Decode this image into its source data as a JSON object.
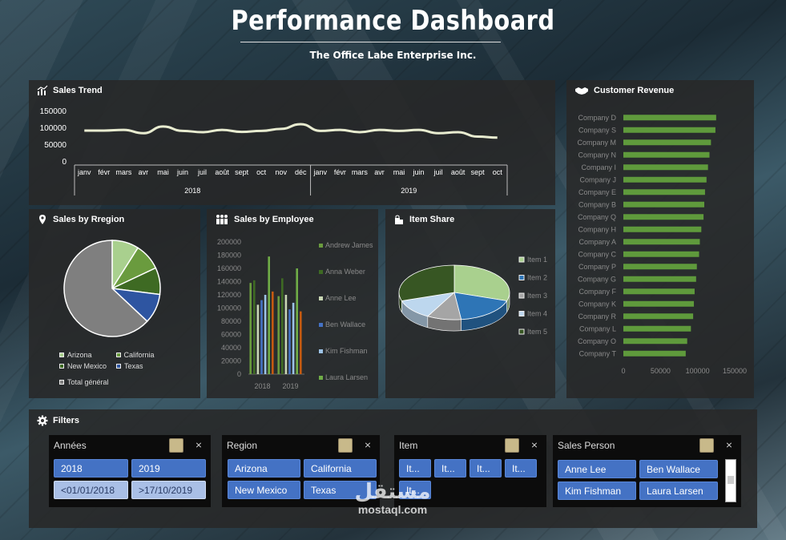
{
  "header": {
    "title": "Performance Dashboard",
    "subtitle": "The Office Labe Enterprise Inc."
  },
  "sales_trend": {
    "title": "Sales Trend",
    "chart_data": {
      "type": "line",
      "yticks": [
        "150000",
        "100000",
        "50000",
        "0"
      ],
      "ylim": [
        0,
        150000
      ],
      "groups": [
        {
          "label": "2018",
          "months": [
            "janv",
            "févr",
            "mars",
            "avr",
            "mai",
            "juin",
            "juil",
            "août",
            "sept",
            "oct",
            "nov",
            "déc"
          ]
        },
        {
          "label": "2019",
          "months": [
            "janv",
            "févr",
            "mars",
            "avr",
            "mai",
            "juin",
            "juil",
            "août",
            "sept",
            "oct"
          ]
        }
      ],
      "values": [
        93000,
        93000,
        95000,
        85000,
        105000,
        92000,
        88000,
        95000,
        89000,
        92000,
        98000,
        112000,
        92000,
        95000,
        88000,
        95000,
        92000,
        95000,
        85000,
        88000,
        75000,
        72000
      ],
      "color": "#e8ecd0"
    }
  },
  "customer_revenue": {
    "title": "Customer Revenue",
    "chart_data": {
      "type": "bar",
      "orientation": "horizontal",
      "categories": [
        "Company D",
        "Company S",
        "Company M",
        "Company N",
        "Company I",
        "Company J",
        "Company E",
        "Company B",
        "Company Q",
        "Company H",
        "Company A",
        "Company C",
        "Company P",
        "Company G",
        "Company F",
        "Company K",
        "Company R",
        "Company L",
        "Company O",
        "Company T"
      ],
      "values": [
        125000,
        124000,
        118000,
        116000,
        114000,
        112000,
        110000,
        109000,
        108000,
        105000,
        103000,
        102000,
        99000,
        98000,
        96000,
        95000,
        94000,
        91000,
        86000,
        84000
      ],
      "xticks": [
        "0",
        "50000",
        "100000",
        "150000"
      ],
      "xlim": [
        0,
        150000
      ],
      "color": "#5f9a3c"
    }
  },
  "sales_by_region": {
    "title": "Sales by Rregion",
    "chart_data": {
      "type": "pie",
      "labels": [
        "Arizona",
        "California",
        "New Mexico",
        "Texas",
        "Total général"
      ],
      "values": [
        9,
        9,
        9,
        10,
        63
      ],
      "colors": [
        "#a9d08e",
        "#6a9b3e",
        "#3e6a23",
        "#2e55a1",
        "#7f7f7f"
      ]
    }
  },
  "sales_by_employee": {
    "title": "Sales by Employee",
    "chart_data": {
      "type": "bar",
      "categories": [
        "2018",
        "2019"
      ],
      "yticks": [
        "200000",
        "180000",
        "160000",
        "140000",
        "120000",
        "100000",
        "80000",
        "60000",
        "40000",
        "20000",
        "0"
      ],
      "ylim": [
        0,
        200000
      ],
      "series": [
        {
          "name": "Andrew James",
          "values": [
            138000,
            118000
          ],
          "color": "#6a9b3e"
        },
        {
          "name": "Anna Weber",
          "values": [
            142000,
            145000
          ],
          "color": "#3e6a23"
        },
        {
          "name": "Anne Lee",
          "values": [
            105000,
            120000
          ],
          "color": "#c9d7b4"
        },
        {
          "name": "Ben Wallace",
          "values": [
            112000,
            98000
          ],
          "color": "#4472c4"
        },
        {
          "name": "Kim Fishman",
          "values": [
            120000,
            108000
          ],
          "color": "#9dc3e6"
        },
        {
          "name": "Laura Larsen",
          "values": [
            178000,
            160000
          ],
          "color": "#70ad47"
        },
        {
          "name": "",
          "values": [
            125000,
            95000
          ],
          "color": "#c55a11"
        }
      ]
    }
  },
  "item_share": {
    "title": "Item Share",
    "chart_data": {
      "type": "pie",
      "labels": [
        "Item 1",
        "Item 2",
        "Item 3",
        "Item 4",
        "Item 5"
      ],
      "values": [
        30,
        18,
        10,
        12,
        30
      ],
      "colors": [
        "#a9d08e",
        "#2e75b6",
        "#a5a5a5",
        "#bdd7ee",
        "#375623"
      ]
    }
  },
  "filters": {
    "title": "Filters",
    "slicers": [
      {
        "header": "Années",
        "items": [
          "2018",
          "2019",
          "<01/01/2018",
          ">17/10/2019"
        ]
      },
      {
        "header": "Region",
        "items": [
          "Arizona",
          "California",
          "New Mexico",
          "Texas"
        ]
      },
      {
        "header": "Item",
        "items": [
          "It...",
          "It...",
          "It...",
          "It...",
          "It..."
        ]
      },
      {
        "header": "Sales Person",
        "items": [
          "Anne Lee",
          "Ben Wallace",
          "Kim Fishman",
          "Laura Larsen"
        ]
      }
    ]
  },
  "watermark": {
    "arabic": "مستقل",
    "latin": "mostaql.com"
  },
  "icons": [
    "chart-icon",
    "handshake-icon",
    "map-pin-icon",
    "people-icon",
    "bags-icon",
    "gear-icon",
    "multi-select-icon",
    "clear-filter-icon"
  ]
}
